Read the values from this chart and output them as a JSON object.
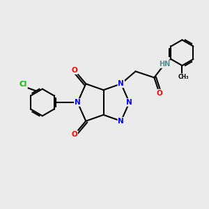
{
  "background_color": "#ebebeb",
  "bond_color": "#000000",
  "atom_colors": {
    "N": "#0000ff",
    "O": "#ff0000",
    "Cl": "#00bb00",
    "C": "#000000",
    "H": "#4a9090"
  },
  "figsize": [
    3.0,
    3.0
  ],
  "dpi": 100
}
